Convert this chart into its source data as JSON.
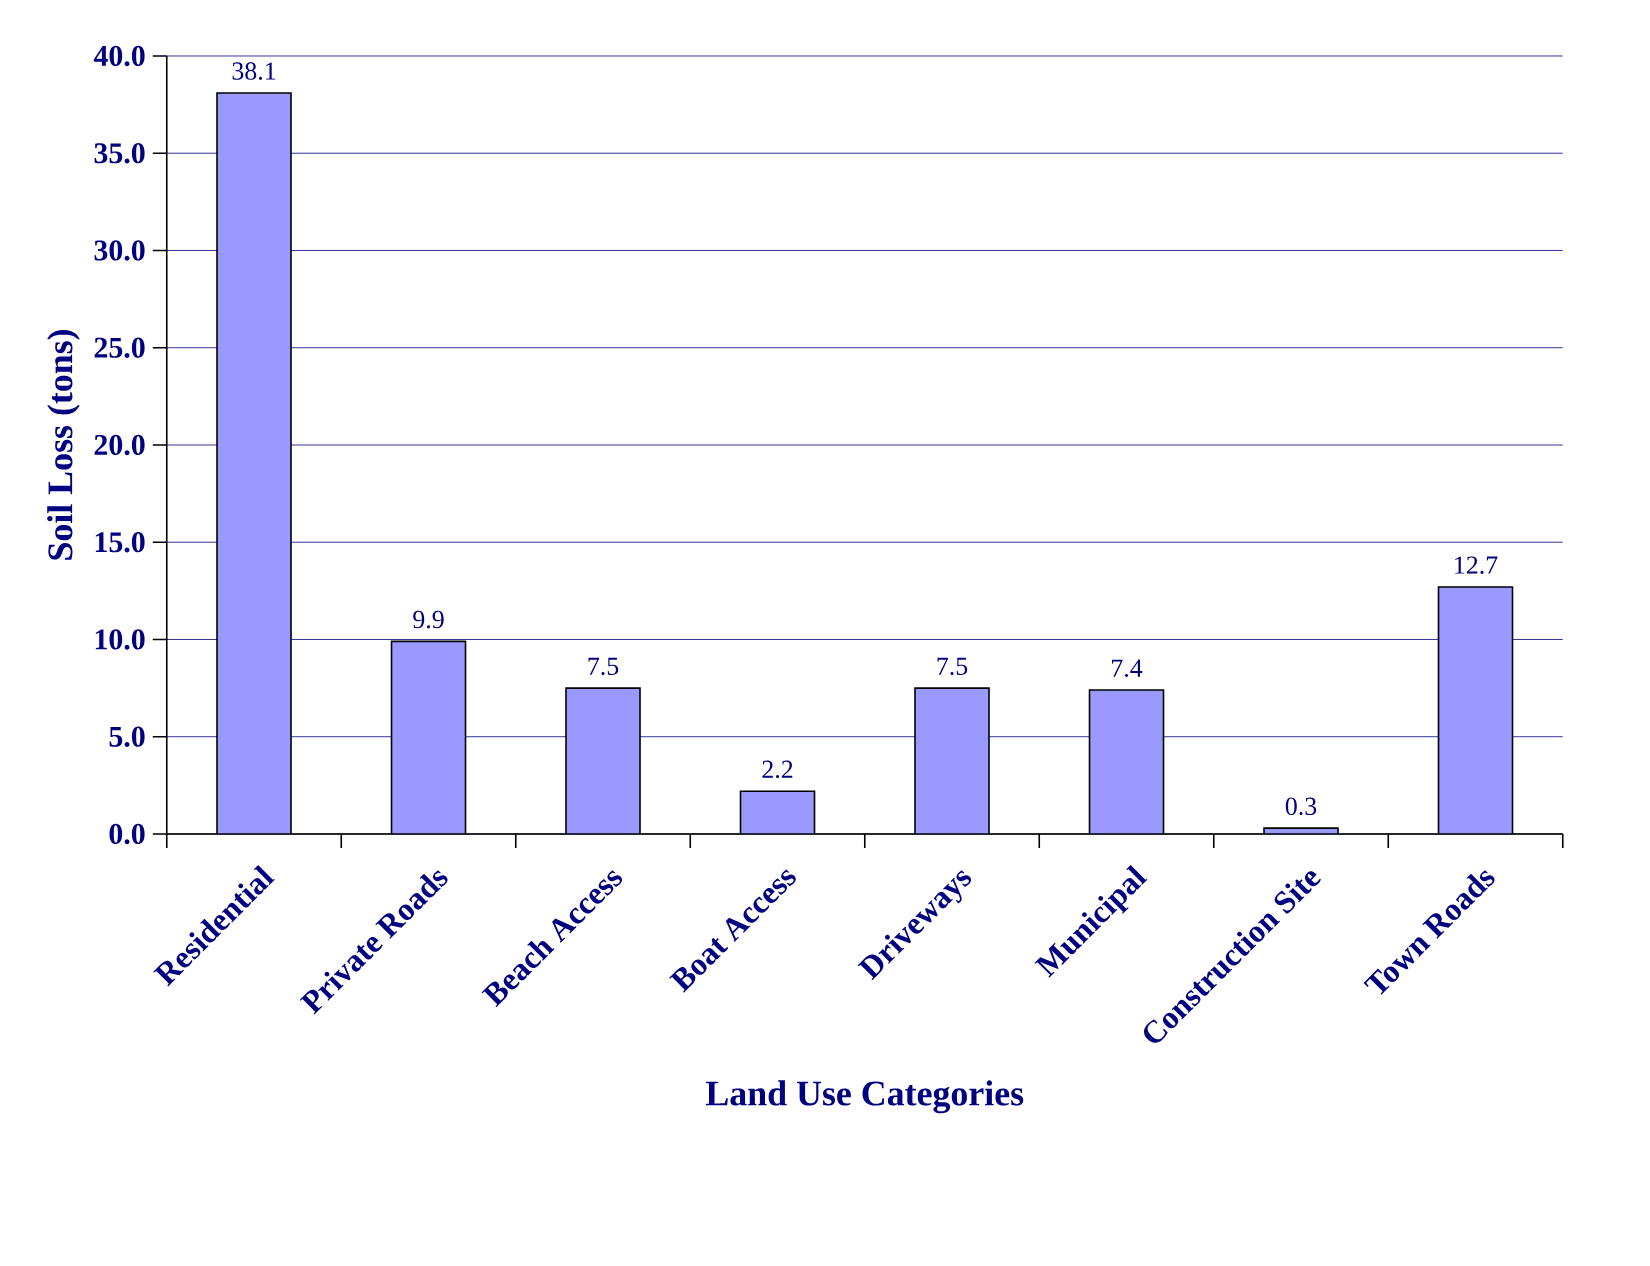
{
  "chart_data": {
    "type": "bar",
    "xlabel": "Land Use Categories",
    "ylabel": "Soil Loss (tons)",
    "categories": [
      "Residential",
      "Private Roads",
      "Beach Access",
      "Boat Access",
      "Driveways",
      "Municipal",
      "Construction Site",
      "Town Roads"
    ],
    "values": [
      38.1,
      9.9,
      7.5,
      2.2,
      7.5,
      7.4,
      0.3,
      12.7
    ],
    "color": "#9999ff",
    "ylim": [
      0,
      40
    ],
    "yticks": [
      {
        "value": 0,
        "label": "0.0"
      },
      {
        "value": 5,
        "label": "5.0"
      },
      {
        "value": 10,
        "label": "10.0"
      },
      {
        "value": 15,
        "label": "15.0"
      },
      {
        "value": 20,
        "label": "20.0"
      },
      {
        "value": 25,
        "label": "25.0"
      },
      {
        "value": 30,
        "label": "30.0"
      },
      {
        "value": 35,
        "label": "35.0"
      },
      {
        "value": 40,
        "label": "40.0"
      }
    ],
    "grid": "y",
    "data_labels": true
  }
}
